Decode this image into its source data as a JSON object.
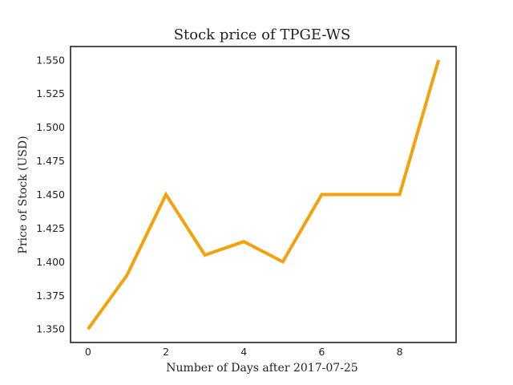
{
  "chart_data": {
    "type": "line",
    "title": "Stock price of TPGE-WS",
    "xlabel": "Number of Days after 2017-07-25",
    "ylabel": "Price of Stock (USD)",
    "x": [
      0,
      1,
      2,
      3,
      4,
      5,
      6,
      7,
      8,
      9
    ],
    "series": [
      {
        "values": [
          1.35,
          1.39,
          1.45,
          1.405,
          1.415,
          1.4,
          1.45,
          1.45,
          1.45,
          1.55
        ],
        "color": "#f5a10e"
      }
    ],
    "xlim": [
      -0.45,
      9.45
    ],
    "ylim": [
      1.34,
      1.56
    ],
    "xticks": [
      0,
      2,
      4,
      6,
      8
    ],
    "xtick_labels": [
      "0",
      "2",
      "4",
      "6",
      "8"
    ],
    "yticks": [
      1.35,
      1.375,
      1.4,
      1.425,
      1.45,
      1.475,
      1.5,
      1.525,
      1.55
    ],
    "ytick_labels": [
      "1.350",
      "1.375",
      "1.400",
      "1.425",
      "1.450",
      "1.475",
      "1.500",
      "1.525",
      "1.550"
    ],
    "grid": false,
    "legend": "none",
    "frame_color": "#222222"
  }
}
